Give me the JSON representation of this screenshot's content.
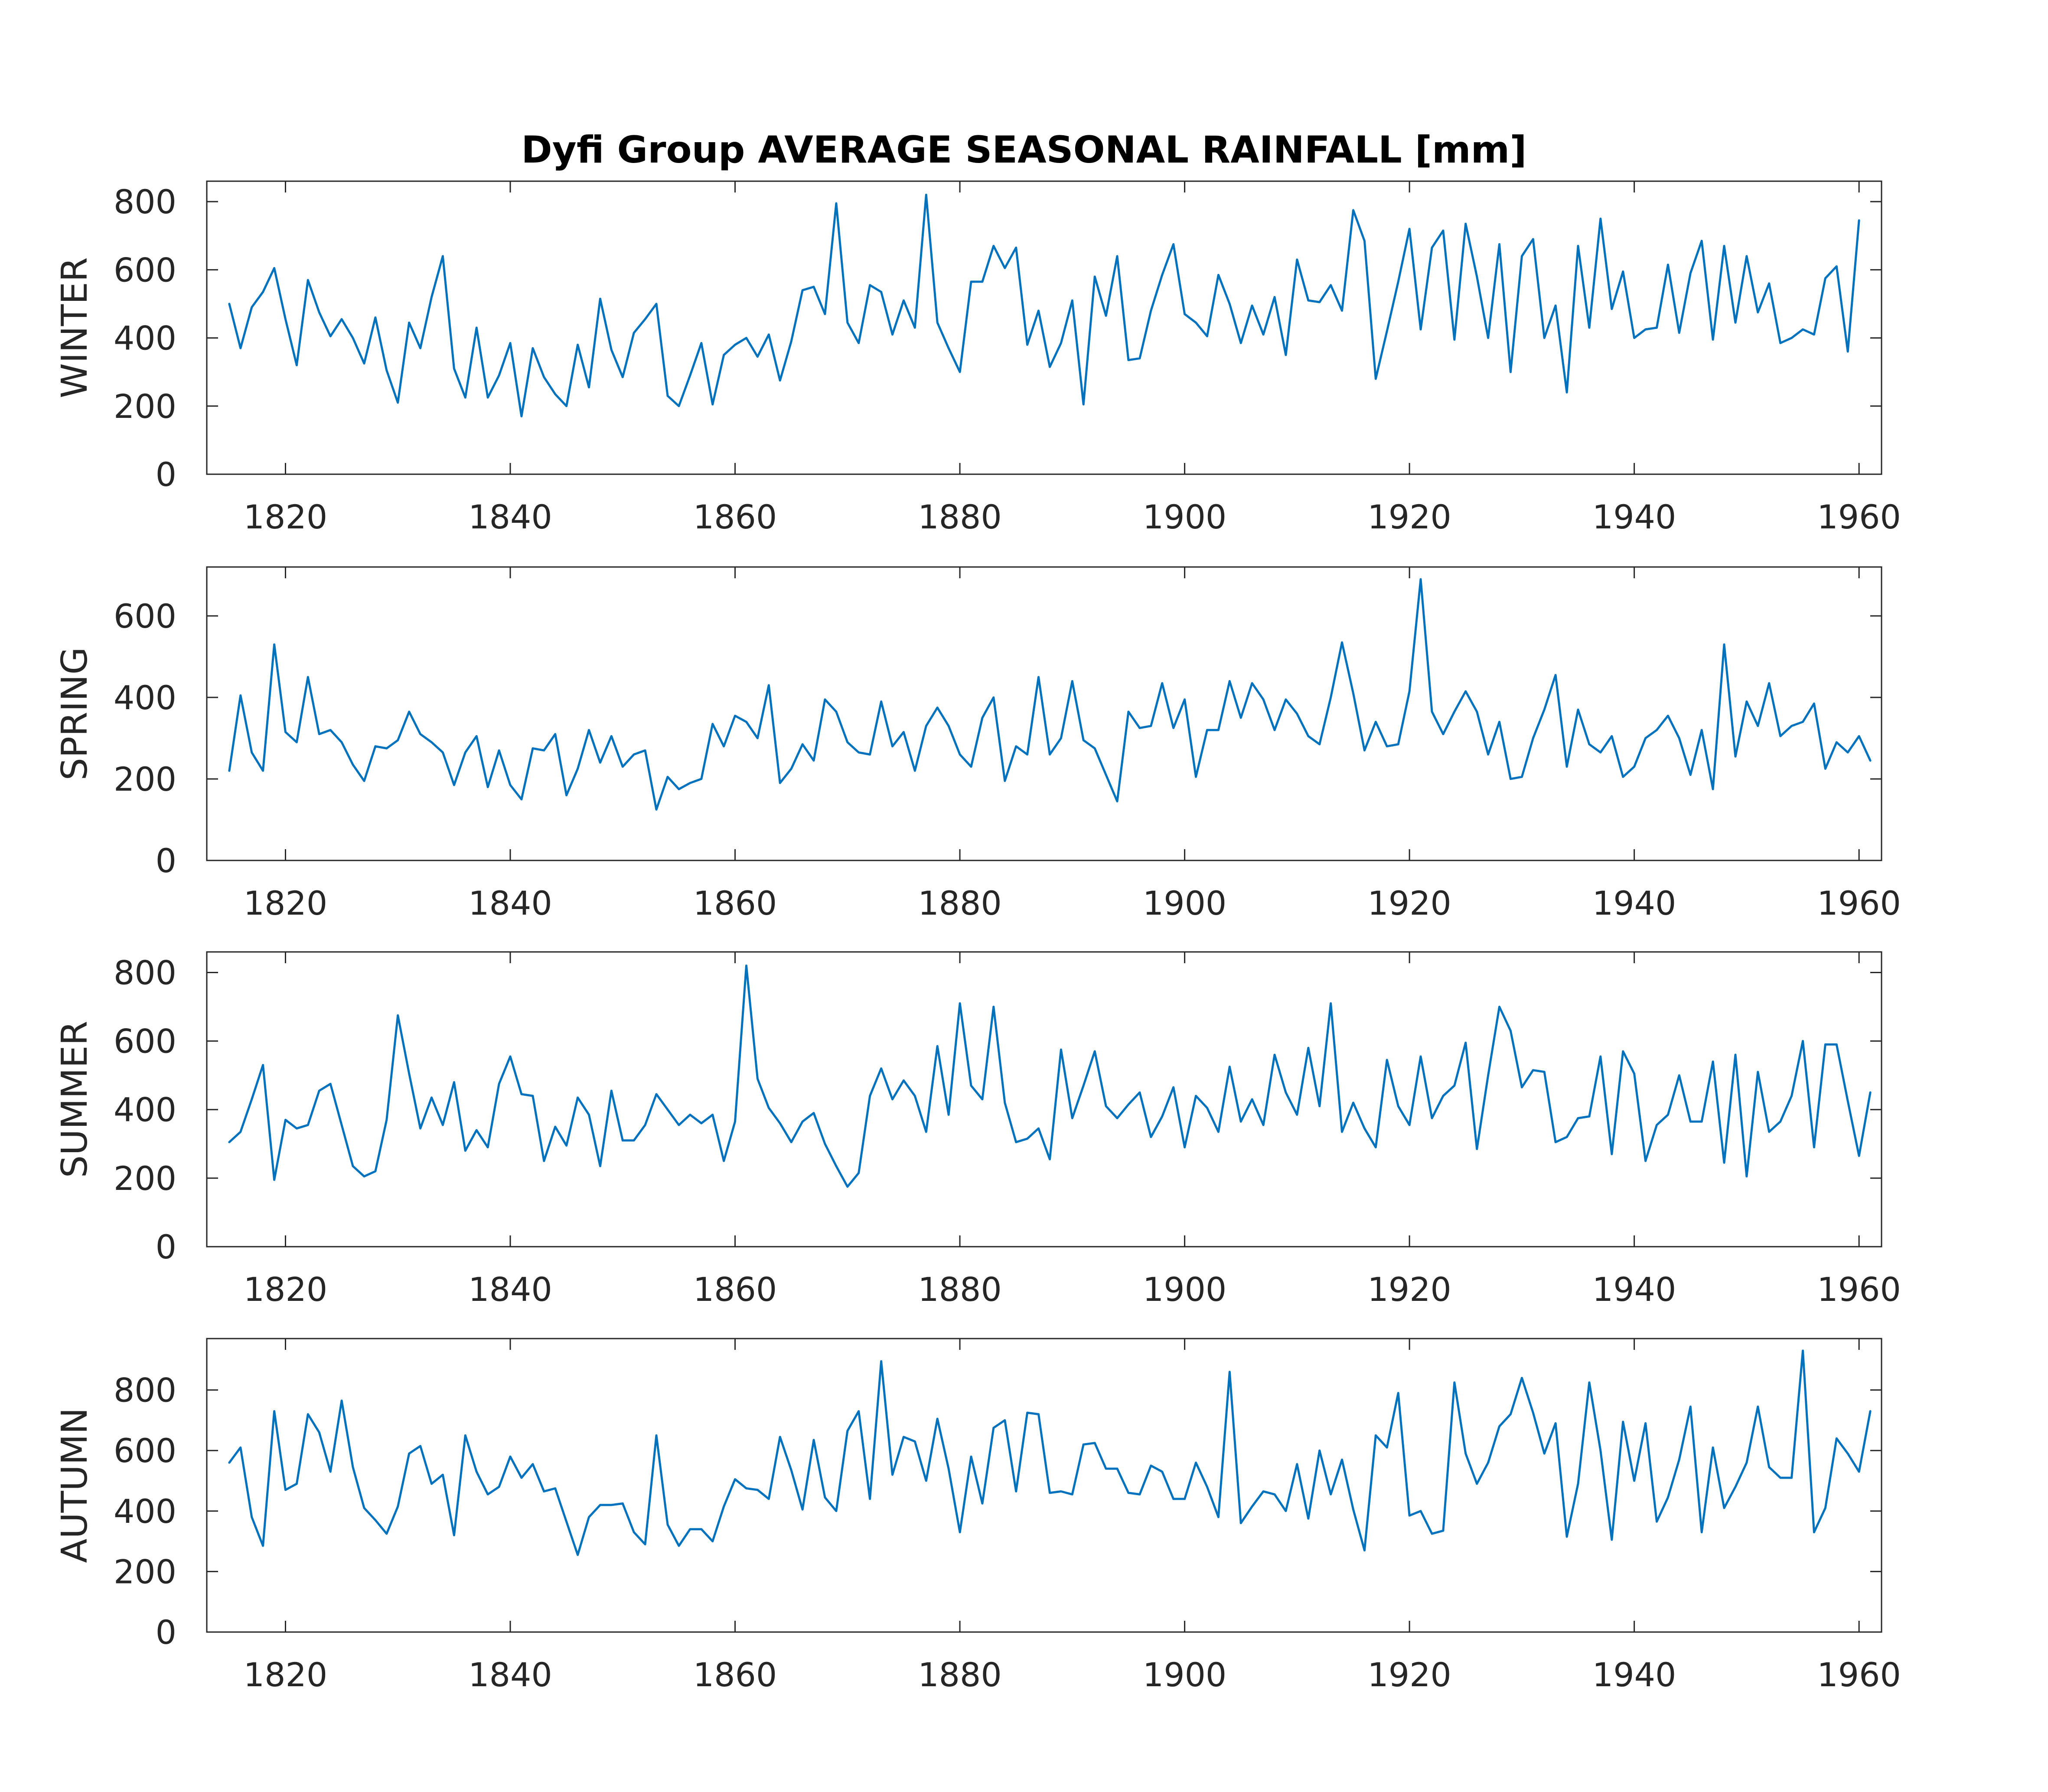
{
  "colors": {
    "line": "#0072BD",
    "axes": "#262626",
    "title": "#000000"
  },
  "chart_data": {
    "title": "Dyfi Group AVERAGE SEASONAL RAINFALL [mm]",
    "type": "line",
    "x_start": 1815,
    "x_end": 1960,
    "xlim": [
      1813,
      1962
    ],
    "xticks": [
      1820,
      1840,
      1860,
      1880,
      1900,
      1920,
      1940,
      1960
    ],
    "xtick_labels": [
      "1820",
      "1840",
      "1860",
      "1880",
      "1900",
      "1920",
      "1940",
      "1960"
    ],
    "panels": [
      {
        "name": "WINTER",
        "ylabel": "WINTER",
        "ylim": [
          0,
          860
        ],
        "yticks": [
          0,
          200,
          400,
          600,
          800
        ],
        "ytick_labels": [
          "0",
          "200",
          "400",
          "600",
          "800"
        ],
        "values": [
          500,
          370,
          490,
          535,
          605,
          455,
          320,
          570,
          475,
          405,
          455,
          400,
          325,
          460,
          305,
          210,
          445,
          370,
          520,
          640,
          310,
          225,
          430,
          225,
          290,
          385,
          170,
          370,
          285,
          235,
          200,
          380,
          255,
          515,
          365,
          285,
          415,
          455,
          500,
          230,
          200,
          290,
          385,
          205,
          350,
          380,
          400,
          345,
          410,
          275,
          390,
          540,
          550,
          470,
          795,
          445,
          385,
          555,
          535,
          410,
          510,
          430,
          820,
          445,
          370,
          300,
          565,
          565,
          670,
          605,
          665,
          380,
          480,
          315,
          385,
          510,
          205,
          580,
          465,
          640,
          335,
          340,
          480,
          585,
          675,
          470,
          445,
          405,
          585,
          500,
          385,
          495,
          410,
          520,
          350,
          630,
          510,
          505,
          555,
          480,
          775,
          685,
          280,
          420,
          565,
          720,
          425,
          665,
          715,
          395,
          735,
          580,
          400,
          675,
          300,
          640,
          690,
          400,
          495,
          240,
          670,
          430,
          750,
          485,
          595,
          400,
          425,
          430,
          615,
          415,
          590,
          685,
          395,
          670,
          445,
          640,
          475,
          560,
          385,
          400,
          425,
          410,
          575,
          610,
          360,
          745
        ]
      },
      {
        "name": "SPRING",
        "ylabel": "SPRING",
        "ylim": [
          0,
          720
        ],
        "yticks": [
          0,
          200,
          400,
          600
        ],
        "ytick_labels": [
          "0",
          "200",
          "400",
          "600"
        ],
        "values": [
          220,
          405,
          265,
          220,
          530,
          315,
          290,
          450,
          310,
          320,
          290,
          235,
          195,
          280,
          275,
          295,
          365,
          310,
          290,
          265,
          185,
          265,
          305,
          180,
          270,
          185,
          150,
          275,
          270,
          310,
          160,
          225,
          320,
          240,
          305,
          230,
          260,
          270,
          125,
          205,
          175,
          190,
          200,
          335,
          280,
          355,
          340,
          300,
          430,
          190,
          225,
          285,
          245,
          395,
          365,
          290,
          265,
          260,
          390,
          280,
          315,
          220,
          330,
          375,
          330,
          260,
          230,
          350,
          400,
          195,
          280,
          260,
          450,
          260,
          300,
          440,
          295,
          275,
          210,
          145,
          365,
          325,
          330,
          435,
          325,
          395,
          205,
          320,
          320,
          440,
          350,
          435,
          395,
          320,
          395,
          360,
          305,
          285,
          400,
          535,
          410,
          270,
          340,
          280,
          285,
          415,
          690,
          365,
          310,
          365,
          415,
          365,
          260,
          340,
          200,
          205,
          300,
          370,
          455,
          230,
          370,
          285,
          265,
          305,
          205,
          230,
          300,
          320,
          355,
          300,
          210,
          320,
          175,
          530,
          255,
          390,
          330,
          435,
          305,
          330,
          340,
          385,
          225,
          290,
          265,
          305,
          245
        ]
      },
      {
        "name": "SUMMER",
        "ylabel": "SUMMER",
        "ylim": [
          0,
          860
        ],
        "yticks": [
          0,
          200,
          400,
          600,
          800
        ],
        "ytick_labels": [
          "0",
          "200",
          "400",
          "600",
          "800"
        ],
        "values": [
          305,
          335,
          430,
          530,
          195,
          370,
          345,
          355,
          455,
          475,
          355,
          235,
          205,
          220,
          370,
          675,
          505,
          345,
          435,
          355,
          480,
          280,
          340,
          290,
          475,
          555,
          445,
          440,
          250,
          350,
          295,
          435,
          385,
          235,
          455,
          310,
          310,
          355,
          445,
          400,
          355,
          385,
          360,
          385,
          250,
          365,
          820,
          490,
          405,
          360,
          305,
          365,
          390,
          300,
          235,
          175,
          215,
          440,
          520,
          430,
          485,
          440,
          335,
          585,
          385,
          710,
          470,
          430,
          700,
          420,
          305,
          315,
          345,
          255,
          575,
          375,
          470,
          570,
          410,
          375,
          415,
          450,
          320,
          380,
          465,
          290,
          440,
          405,
          335,
          525,
          365,
          430,
          355,
          560,
          450,
          385,
          580,
          410,
          710,
          335,
          420,
          345,
          290,
          545,
          410,
          355,
          555,
          375,
          440,
          470,
          595,
          285,
          500,
          700,
          630,
          465,
          515,
          510,
          305,
          320,
          375,
          380,
          555,
          270,
          570,
          505,
          250,
          355,
          385,
          500,
          365,
          365,
          540,
          245,
          560,
          205,
          510,
          335,
          365,
          440,
          600,
          290,
          590,
          590,
          425,
          265,
          450
        ]
      },
      {
        "name": "AUTUMN",
        "ylabel": "AUTUMN",
        "ylim": [
          0,
          970
        ],
        "yticks": [
          0,
          200,
          400,
          600,
          800
        ],
        "ytick_labels": [
          "0",
          "200",
          "400",
          "600",
          "800"
        ],
        "values": [
          560,
          610,
          380,
          285,
          730,
          470,
          490,
          720,
          660,
          530,
          765,
          545,
          410,
          370,
          325,
          415,
          590,
          615,
          490,
          520,
          320,
          650,
          530,
          455,
          480,
          580,
          510,
          555,
          465,
          475,
          365,
          255,
          380,
          420,
          420,
          425,
          330,
          290,
          650,
          355,
          285,
          340,
          340,
          300,
          415,
          505,
          475,
          470,
          440,
          645,
          535,
          405,
          635,
          445,
          400,
          665,
          730,
          440,
          895,
          520,
          645,
          630,
          500,
          705,
          540,
          330,
          580,
          425,
          675,
          700,
          465,
          725,
          720,
          460,
          465,
          455,
          620,
          625,
          540,
          540,
          460,
          455,
          550,
          530,
          440,
          440,
          560,
          480,
          380,
          860,
          360,
          415,
          465,
          455,
          400,
          555,
          375,
          600,
          455,
          570,
          405,
          270,
          650,
          610,
          790,
          385,
          400,
          325,
          335,
          825,
          590,
          490,
          560,
          680,
          720,
          840,
          725,
          590,
          690,
          315,
          490,
          825,
          600,
          305,
          695,
          500,
          690,
          365,
          445,
          570,
          745,
          330,
          610,
          410,
          480,
          560,
          745,
          545,
          510,
          510,
          930,
          330,
          410,
          640,
          590,
          530,
          730
        ]
      }
    ]
  }
}
